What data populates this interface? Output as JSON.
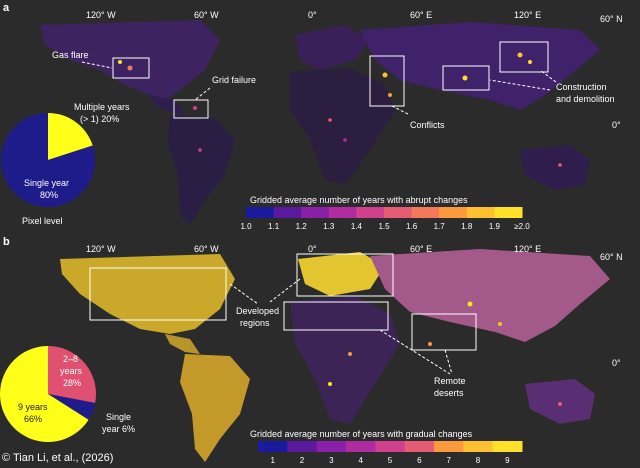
{
  "panel_a": {
    "letter": "a",
    "longitudes": [
      "120° W",
      "60° W",
      "0°",
      "60° E",
      "120° E"
    ],
    "latitudes": [
      "60° N",
      "0°"
    ],
    "annotations": [
      "Gas flare",
      "Grid failure",
      "Conflicts",
      "Construction and demolition"
    ],
    "pie": {
      "title": "Pixel level",
      "slices": [
        {
          "label": "Single year",
          "pct": "80%",
          "value": 80,
          "color": "#1e1b8a"
        },
        {
          "label": "Multiple years (> 1)",
          "pct": "20%",
          "value": 20,
          "color": "#ffff1a"
        }
      ]
    },
    "legend": {
      "title": "Gridded average number of years with abrupt changes",
      "ticks": [
        "1.0",
        "1.1",
        "1.2",
        "1.3",
        "1.4",
        "1.5",
        "1.6",
        "1.7",
        "1.8",
        "1.9",
        "≥2.0"
      ],
      "colors": [
        "#1a1a9e",
        "#5b1a9e",
        "#8a1fa8",
        "#b02aa0",
        "#d0408c",
        "#e65c74",
        "#f27a5a",
        "#f99a3c",
        "#fcc030",
        "#ffe12a"
      ]
    }
  },
  "panel_b": {
    "letter": "b",
    "longitudes": [
      "120° W",
      "60° W",
      "0°",
      "60° E",
      "120° E"
    ],
    "latitudes": [
      "60° N",
      "0°"
    ],
    "annotations": [
      "Developed regions",
      "Remote deserts"
    ],
    "pie": {
      "slices": [
        {
          "label": "9 years",
          "pct": "66%",
          "value": 66,
          "color": "#ffff1a"
        },
        {
          "label": "2–8 years",
          "pct": "28%",
          "value": 28,
          "color": "#e05070"
        },
        {
          "label": "Single year",
          "pct": "6%",
          "value": 6,
          "color": "#1e1b8a"
        }
      ]
    },
    "legend": {
      "title": "Gridded average number of years with gradual changes",
      "ticks": [
        "1",
        "2",
        "3",
        "4",
        "5",
        "6",
        "7",
        "8",
        "9"
      ],
      "colors": [
        "#1a1a9e",
        "#5b1a9e",
        "#8a1fa8",
        "#b02aa0",
        "#d0408c",
        "#e65c74",
        "#f99a3c",
        "#fcc030",
        "#ffe12a"
      ]
    }
  },
  "credit": "© Tian Li, et al., (2026)"
}
